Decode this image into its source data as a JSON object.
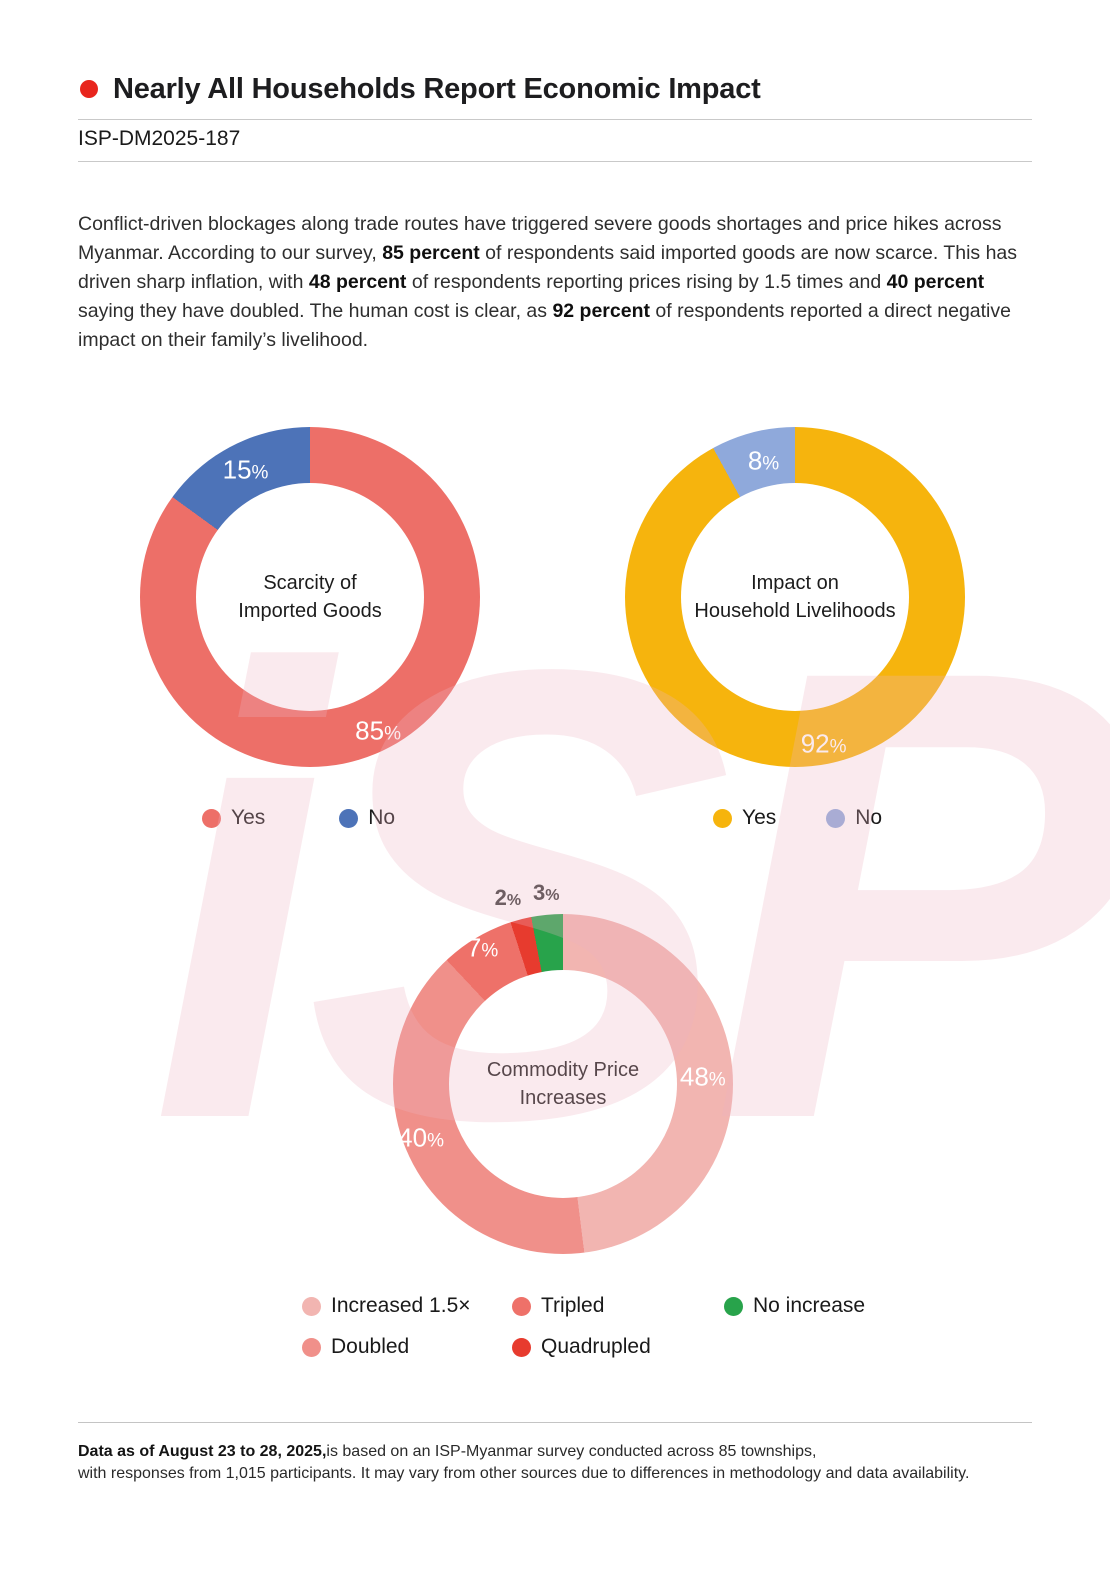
{
  "header": {
    "title": "Nearly All Households Report Economic Impact",
    "report_id": "ISP-DM2025-187",
    "bullet_color": "#E8251D"
  },
  "intro": {
    "segments": [
      {
        "text": "Conflict-driven blockages along trade routes have triggered severe goods shortages and price hikes across Myanmar. According to our survey, ",
        "bold": false
      },
      {
        "text": "85 percent",
        "bold": true
      },
      {
        "text": " of respondents said imported goods are now scarce. This has driven sharp inflation, with ",
        "bold": false
      },
      {
        "text": "48 percent",
        "bold": true
      },
      {
        "text": " of respondents reporting prices rising by 1.5 times and ",
        "bold": false
      },
      {
        "text": "40 percent",
        "bold": true
      },
      {
        "text": " saying they have doubled. The human cost is clear, as ",
        "bold": false
      },
      {
        "text": "92 percent",
        "bold": true
      },
      {
        "text": " of respondents reported a direct negative impact on their family’s livelihood.",
        "bold": false
      }
    ]
  },
  "watermark": {
    "text": "iSP"
  },
  "chart_data": [
    {
      "type": "pie",
      "variant": "donut",
      "title": "Scarcity of Imported Goods",
      "title_lines": [
        "Scarcity of",
        "Imported Goods"
      ],
      "categories": [
        "Yes",
        "No"
      ],
      "values": [
        85,
        15
      ],
      "unit": "%",
      "legend_position": "bottom",
      "series": [
        {
          "name": "Yes",
          "value": 85,
          "color": "#ED6F68",
          "label_color": "#FFFFFF",
          "label_r": 150,
          "label_angle": 153
        },
        {
          "name": "No",
          "value": 15,
          "color": "#4D73B8",
          "label_color": "#FFFFFF",
          "label_r": 142,
          "label_angle": 333
        }
      ],
      "legend": [
        {
          "label": "Yes",
          "color": "#ED6F68"
        },
        {
          "label": "No",
          "color": "#4D73B8"
        }
      ]
    },
    {
      "type": "pie",
      "variant": "donut",
      "title": "Impact on Household Livelihoods",
      "title_lines": [
        "Impact on",
        "Household Livelihoods"
      ],
      "categories": [
        "Yes",
        "No"
      ],
      "values": [
        92,
        8
      ],
      "unit": "%",
      "legend_position": "bottom",
      "series": [
        {
          "name": "Yes",
          "value": 92,
          "color": "#F6B40D",
          "label_color": "#FFFFFF",
          "label_r": 150,
          "label_angle": 169
        },
        {
          "name": "No",
          "value": 8,
          "color": "#8FA9DB",
          "label_color": "#FFFFFF",
          "label_r": 140,
          "label_angle": 347
        }
      ],
      "legend": [
        {
          "label": "Yes",
          "color": "#F6B40D"
        },
        {
          "label": "No",
          "color": "#8FA9DB"
        }
      ]
    },
    {
      "type": "pie",
      "variant": "donut",
      "title": "Commodity Price Increases",
      "title_lines": [
        "Commodity Price",
        "Increases"
      ],
      "categories": [
        "Increased 1.5×",
        "Doubled",
        "Tripled",
        "Quadrupled",
        "No increase"
      ],
      "values": [
        48,
        40,
        7,
        2,
        3
      ],
      "unit": "%",
      "legend_position": "bottom",
      "series": [
        {
          "name": "Increased 1.5×",
          "value": 48,
          "color": "#F2B5B1",
          "label_color": "#FFFFFF",
          "label_r": 140,
          "label_angle": 87
        },
        {
          "name": "Doubled",
          "value": 40,
          "color": "#F0908A",
          "label_color": "#FFFFFF",
          "label_r": 152,
          "label_angle": 249
        },
        {
          "name": "Tripled",
          "value": 7,
          "color": "#EE7169",
          "label_color": "#FFFFFF",
          "label_r": 158,
          "label_angle": 329.4
        },
        {
          "name": "Quadrupled",
          "value": 2,
          "color": "#E73B2E",
          "label_color": "#3D3D3D",
          "label_r": 194,
          "label_angle": 343.5,
          "label_outside": true
        },
        {
          "name": "No increase",
          "value": 3,
          "color": "#28A34B",
          "label_color": "#3D3D3D",
          "label_r": 192,
          "label_angle": 355,
          "label_outside": true
        }
      ],
      "legend": [
        {
          "label": "Increased 1.5×",
          "color": "#F2B5B1"
        },
        {
          "label": "Tripled",
          "color": "#EE7169"
        },
        {
          "label": "No increase",
          "color": "#28A34B"
        },
        {
          "label": "Doubled",
          "color": "#F0908A"
        },
        {
          "label": "Quadrupled",
          "color": "#E73B2E"
        }
      ]
    }
  ],
  "footnote": {
    "bold": "Data as of August 23 to 28, 2025,",
    "line1_rest": "is based on an ISP-Myanmar survey conducted across 85 townships,",
    "line2": "with responses from 1,015 participants. It may vary from other sources due to differences in methodology and data availability."
  }
}
